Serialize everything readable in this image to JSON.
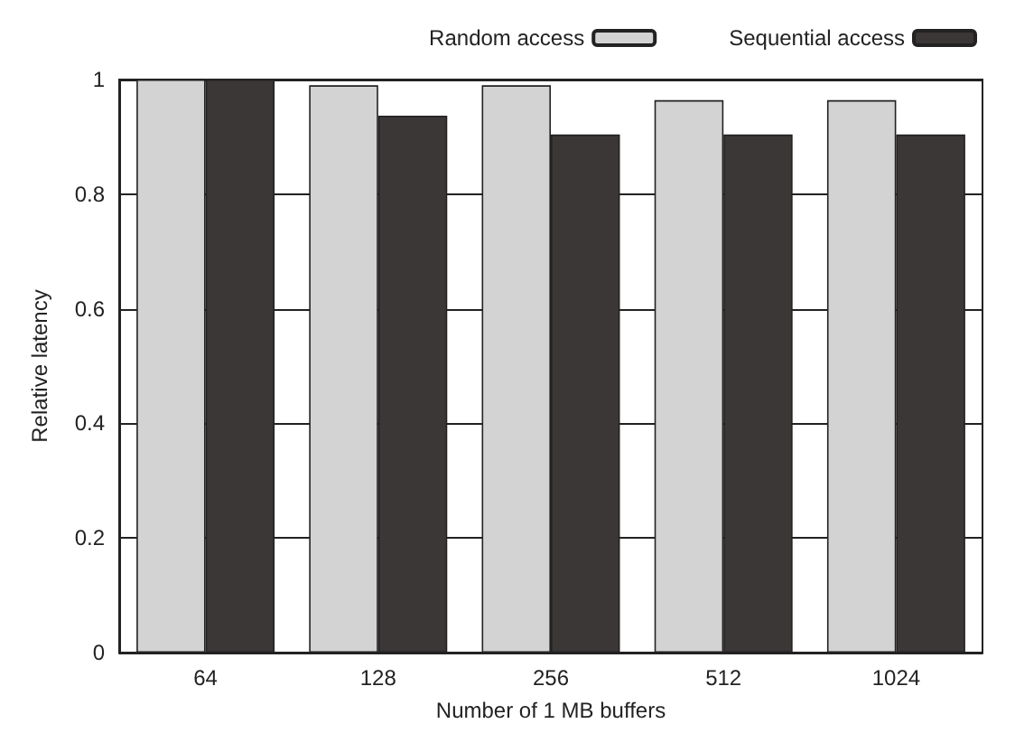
{
  "chart_data": {
    "type": "bar",
    "xlabel": "Number of 1 MB buffers",
    "ylabel": "Relative latency",
    "categories": [
      "64",
      "128",
      "256",
      "512",
      "1024"
    ],
    "series": [
      {
        "name": "Random access",
        "color": "#d4d3d4",
        "values": [
          1.0,
          0.99,
          0.99,
          0.964,
          0.964
        ]
      },
      {
        "name": "Sequential access",
        "color": "#3b3736",
        "values": [
          1.0,
          0.937,
          0.904,
          0.904,
          0.904
        ]
      }
    ],
    "ylim": [
      0,
      1
    ],
    "yticks": [
      0,
      0.2,
      0.4,
      0.6,
      0.8,
      1
    ],
    "grid": "y",
    "legend": "top right"
  }
}
